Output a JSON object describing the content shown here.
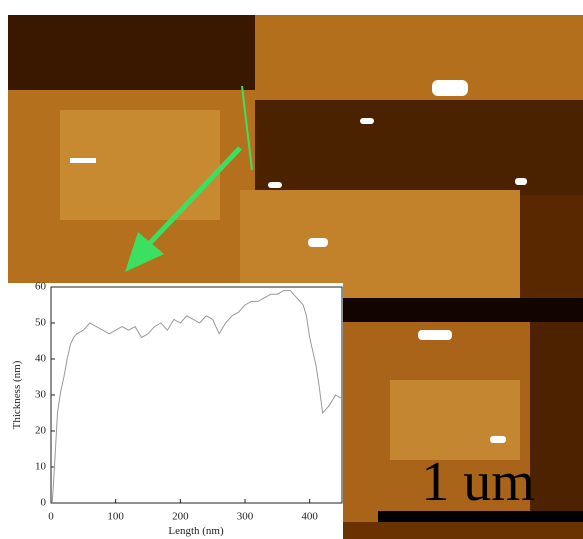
{
  "chart_data": {
    "type": "line",
    "x_label": "Length (nm)",
    "y_label": "Thickness (nm)",
    "x": [
      2,
      6,
      10,
      15,
      20,
      25,
      30,
      35,
      40,
      50,
      60,
      70,
      80,
      90,
      100,
      110,
      120,
      130,
      140,
      150,
      160,
      170,
      180,
      190,
      200,
      210,
      220,
      230,
      240,
      250,
      260,
      270,
      280,
      290,
      300,
      310,
      320,
      330,
      340,
      350,
      360,
      370,
      380,
      390,
      395,
      400,
      405,
      410,
      415,
      420,
      425,
      430,
      440,
      450
    ],
    "values": [
      0,
      12,
      25,
      31,
      35,
      40,
      44,
      46,
      47,
      48,
      50,
      49,
      48,
      47,
      48,
      49,
      48,
      49,
      46,
      47,
      49,
      50,
      48,
      51,
      50,
      52,
      51,
      50,
      52,
      51,
      47,
      50,
      52,
      53,
      55,
      56,
      56,
      57,
      58,
      58,
      59,
      59,
      57,
      55,
      52,
      46,
      42,
      38,
      32,
      25,
      26,
      27,
      30,
      29
    ],
    "color": "#999999",
    "xlim": [
      0,
      450
    ],
    "xticks": [
      0,
      100,
      200,
      300,
      400
    ],
    "ylim": [
      0,
      60
    ],
    "yticks": [
      0,
      10,
      20,
      30,
      40,
      50,
      60
    ],
    "scale_bar_label": "1 um"
  }
}
